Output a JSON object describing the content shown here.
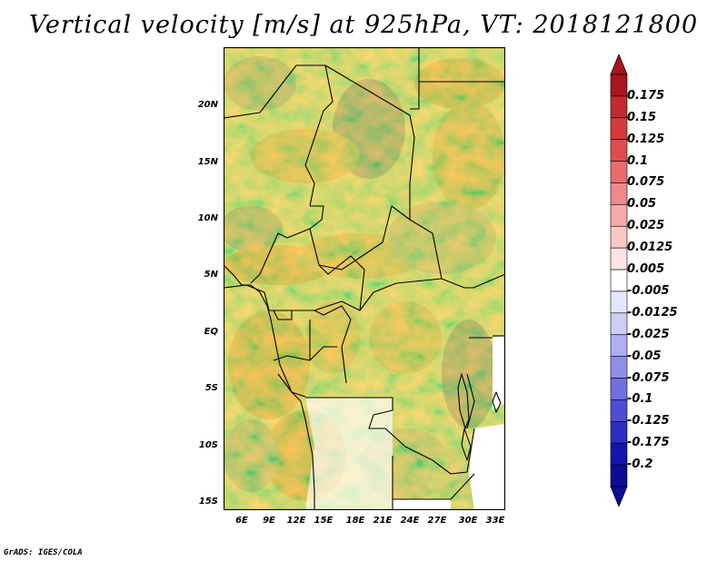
{
  "title": "Vertical velocity [m/s] at 925hPa, VT: 2018121800",
  "credit": "GrADS: IGES/COLA",
  "map": {
    "lat_labels": [
      "20N",
      "15N",
      "10N",
      "5N",
      "EQ",
      "5S",
      "10S",
      "15S"
    ],
    "lon_labels": [
      "6E",
      "9E",
      "12E",
      "15E",
      "18E",
      "21E",
      "24E",
      "27E",
      "30E",
      "33E"
    ],
    "lon_range_deg": [
      3.5,
      34.5
    ],
    "lat_range_deg": [
      -15.5,
      25.0
    ]
  },
  "colorbar": {
    "levels": [
      "0.175",
      "0.15",
      "0.125",
      "0.1",
      "0.075",
      "0.05",
      "0.025",
      "0.0125",
      "0.005",
      "-0.005",
      "-0.0125",
      "-0.025",
      "-0.05",
      "-0.075",
      "-0.1",
      "-0.125",
      "-0.175",
      "-0.2"
    ],
    "colors": [
      "#a8151c",
      "#c22a2c",
      "#d63b3c",
      "#e24c4c",
      "#ea6b6b",
      "#f08a8a",
      "#f6a9a9",
      "#fac7c7",
      "#fde3e3",
      "#ffffff",
      "#e6e6fb",
      "#cdcdf6",
      "#aeaef0",
      "#8f8fe8",
      "#6f6fe0",
      "#4e4ed5",
      "#2d2dc4",
      "#1414b0",
      "#0b0b96"
    ],
    "top_arrow_color": "#a8151c",
    "bottom_arrow_color": "#0b0b96"
  }
}
